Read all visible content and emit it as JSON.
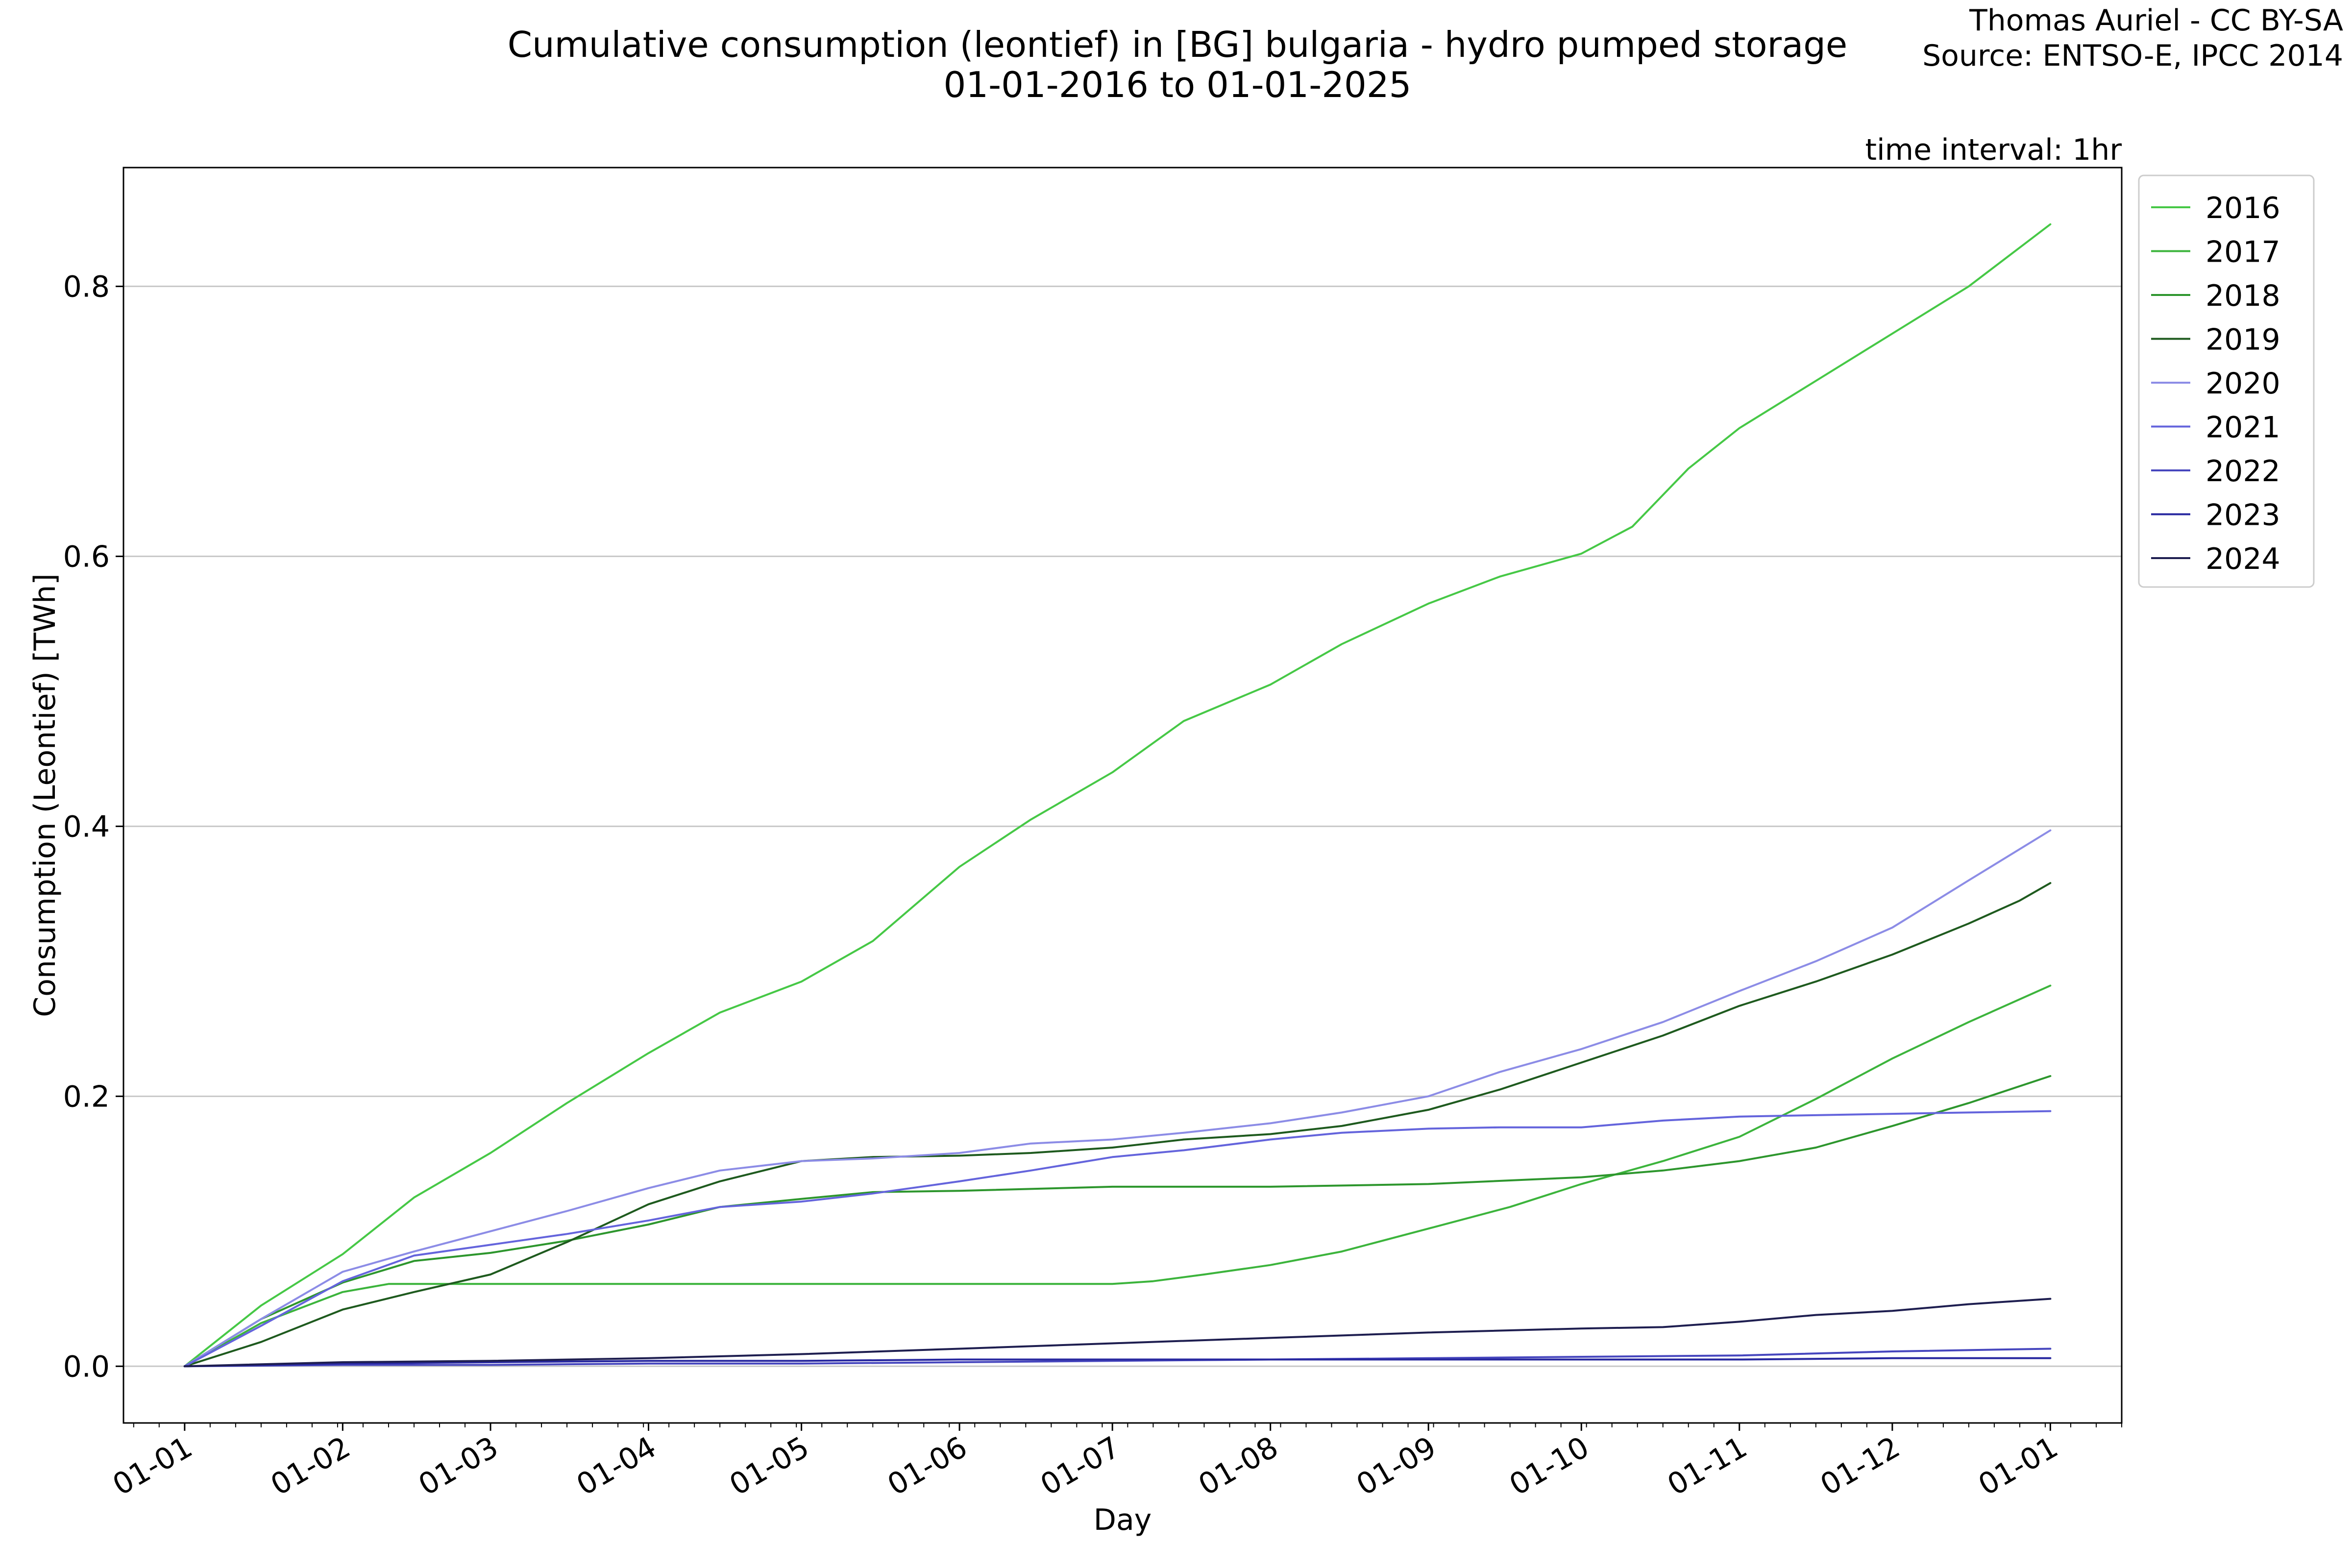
{
  "chart_data": {
    "type": "line",
    "title": "Cumulative consumption (leontief) in [BG] bulgaria - hydro pumped storage",
    "subtitle": "01-01-2016 to 01-01-2025",
    "credit_line1": "Thomas Auriel - CC BY-SA",
    "credit_line2": "Source: ENTSO-E, IPCC 2014",
    "interval_note": "time interval: 1hr",
    "xlabel": "Day",
    "ylabel": "Consumption (Leontief) [TWh]",
    "x_unit": "day of year",
    "xlim": [
      -12,
      380
    ],
    "ylim": [
      -0.042,
      0.888
    ],
    "x_ticks": [
      {
        "label": "01-01",
        "x": 0
      },
      {
        "label": "01-02",
        "x": 31
      },
      {
        "label": "01-03",
        "x": 60
      },
      {
        "label": "01-04",
        "x": 91
      },
      {
        "label": "01-05",
        "x": 121
      },
      {
        "label": "01-06",
        "x": 152
      },
      {
        "label": "01-07",
        "x": 182
      },
      {
        "label": "01-08",
        "x": 213
      },
      {
        "label": "01-09",
        "x": 244
      },
      {
        "label": "01-10",
        "x": 274
      },
      {
        "label": "01-11",
        "x": 305
      },
      {
        "label": "01-12",
        "x": 335
      },
      {
        "label": "01-01",
        "x": 366
      }
    ],
    "y_ticks": [
      {
        "label": "0.0",
        "y": 0
      },
      {
        "label": "0.2",
        "y": 0.2
      },
      {
        "label": "0.4",
        "y": 0.4
      },
      {
        "label": "0.6",
        "y": 0.6
      },
      {
        "label": "0.8",
        "y": 0.8
      }
    ],
    "grid": "horizontal",
    "legend_position": "outside-right-top",
    "series": [
      {
        "name": "2016",
        "color": "#46c846",
        "x": [
          0,
          15,
          31,
          45,
          60,
          75,
          91,
          105,
          121,
          135,
          152,
          166,
          182,
          196,
          213,
          227,
          244,
          258,
          274,
          284,
          295,
          305,
          320,
          335,
          350,
          366
        ],
        "y": [
          0,
          0.045,
          0.083,
          0.125,
          0.158,
          0.195,
          0.232,
          0.262,
          0.285,
          0.315,
          0.37,
          0.405,
          0.44,
          0.478,
          0.505,
          0.535,
          0.565,
          0.585,
          0.602,
          0.622,
          0.665,
          0.695,
          0.73,
          0.765,
          0.8,
          0.846
        ]
      },
      {
        "name": "2017",
        "color": "#3cb43c",
        "x": [
          0,
          15,
          31,
          40,
          60,
          91,
          121,
          152,
          182,
          190,
          200,
          213,
          227,
          244,
          260,
          274,
          290,
          305,
          320,
          335,
          350,
          366
        ],
        "y": [
          0,
          0.032,
          0.055,
          0.061,
          0.061,
          0.061,
          0.061,
          0.061,
          0.061,
          0.063,
          0.068,
          0.075,
          0.085,
          0.102,
          0.118,
          0.135,
          0.152,
          0.17,
          0.198,
          0.228,
          0.255,
          0.282
        ]
      },
      {
        "name": "2018",
        "color": "#2d962d",
        "x": [
          0,
          15,
          31,
          45,
          60,
          75,
          91,
          105,
          121,
          135,
          152,
          182,
          213,
          244,
          274,
          290,
          305,
          320,
          335,
          350,
          366
        ],
        "y": [
          0,
          0.035,
          0.062,
          0.078,
          0.084,
          0.093,
          0.105,
          0.118,
          0.124,
          0.129,
          0.13,
          0.133,
          0.133,
          0.135,
          0.14,
          0.145,
          0.152,
          0.162,
          0.178,
          0.195,
          0.215
        ]
      },
      {
        "name": "2019",
        "color": "#1e5a1e",
        "x": [
          0,
          15,
          31,
          45,
          60,
          75,
          91,
          105,
          121,
          135,
          152,
          166,
          182,
          196,
          213,
          227,
          244,
          258,
          274,
          290,
          305,
          320,
          335,
          350,
          360,
          366
        ],
        "y": [
          0,
          0.018,
          0.042,
          0.055,
          0.068,
          0.092,
          0.12,
          0.137,
          0.152,
          0.155,
          0.156,
          0.158,
          0.162,
          0.168,
          0.172,
          0.178,
          0.19,
          0.205,
          0.225,
          0.245,
          0.267,
          0.285,
          0.305,
          0.328,
          0.345,
          0.358
        ]
      },
      {
        "name": "2020",
        "color": "#8c8ce6",
        "x": [
          0,
          15,
          31,
          45,
          60,
          75,
          91,
          105,
          121,
          135,
          152,
          166,
          182,
          196,
          213,
          227,
          244,
          258,
          274,
          290,
          305,
          320,
          335,
          350,
          366
        ],
        "y": [
          0,
          0.035,
          0.07,
          0.085,
          0.1,
          0.115,
          0.132,
          0.145,
          0.152,
          0.154,
          0.158,
          0.165,
          0.168,
          0.173,
          0.18,
          0.188,
          0.2,
          0.218,
          0.235,
          0.255,
          0.278,
          0.3,
          0.325,
          0.36,
          0.397
        ]
      },
      {
        "name": "2021",
        "color": "#6464dc",
        "x": [
          0,
          15,
          31,
          45,
          60,
          75,
          91,
          105,
          121,
          135,
          152,
          166,
          182,
          196,
          213,
          227,
          244,
          258,
          274,
          290,
          305,
          320,
          335,
          350,
          366
        ],
        "y": [
          0,
          0.03,
          0.063,
          0.082,
          0.09,
          0.098,
          0.108,
          0.118,
          0.122,
          0.128,
          0.137,
          0.145,
          0.155,
          0.16,
          0.168,
          0.173,
          0.176,
          0.177,
          0.177,
          0.182,
          0.185,
          0.186,
          0.187,
          0.188,
          0.189
        ]
      },
      {
        "name": "2022",
        "color": "#4646be",
        "x": [
          0,
          31,
          60,
          91,
          121,
          152,
          182,
          213,
          244,
          274,
          305,
          335,
          366
        ],
        "y": [
          0,
          0.001,
          0.001,
          0.002,
          0.002,
          0.003,
          0.004,
          0.005,
          0.006,
          0.007,
          0.008,
          0.011,
          0.013
        ]
      },
      {
        "name": "2023",
        "color": "#2828a0",
        "x": [
          0,
          31,
          60,
          91,
          121,
          152,
          182,
          213,
          244,
          274,
          305,
          335,
          366
        ],
        "y": [
          0,
          0.002,
          0.003,
          0.004,
          0.004,
          0.005,
          0.005,
          0.005,
          0.005,
          0.005,
          0.005,
          0.006,
          0.006
        ]
      },
      {
        "name": "2024",
        "color": "#1e1e50",
        "x": [
          0,
          31,
          60,
          91,
          121,
          152,
          182,
          213,
          244,
          274,
          290,
          305,
          320,
          335,
          350,
          366
        ],
        "y": [
          0,
          0.003,
          0.004,
          0.006,
          0.009,
          0.013,
          0.017,
          0.021,
          0.025,
          0.028,
          0.029,
          0.033,
          0.038,
          0.041,
          0.046,
          0.05
        ]
      }
    ]
  }
}
